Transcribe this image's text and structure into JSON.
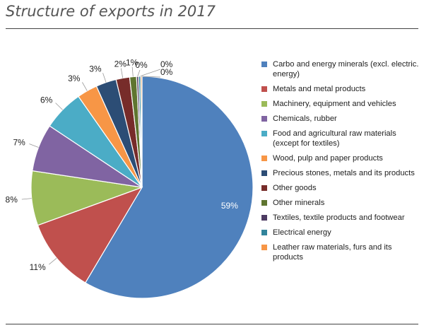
{
  "title": "Structure of exports in 2017",
  "chart_data": {
    "type": "pie",
    "title": "Structure of exports in 2017",
    "slices": [
      {
        "label": "Carbo and energy minerals (excl. electric. energy)",
        "value": 59,
        "display": "59%",
        "color": "#4f81bd"
      },
      {
        "label": "Metals and metal products",
        "value": 11,
        "display": "11%",
        "color": "#c0504d"
      },
      {
        "label": "Machinery, equipment and vehicles",
        "value": 8,
        "display": "8%",
        "color": "#9bbb59"
      },
      {
        "label": "Chemicals, rubber",
        "value": 7,
        "display": "7%",
        "color": "#8064a2"
      },
      {
        "label": "Food and agricultural raw materials (except for textiles)",
        "value": 6,
        "display": "6%",
        "color": "#4bacc6"
      },
      {
        "label": "Wood, pulp and paper products",
        "value": 3,
        "display": "3%",
        "color": "#f79646"
      },
      {
        "label": "Precious stones, metals and its products",
        "value": 3,
        "display": "3%",
        "color": "#2c4d75"
      },
      {
        "label": "Other goods",
        "value": 2,
        "display": "2%",
        "color": "#772c2a"
      },
      {
        "label": "Other minerals",
        "value": 1,
        "display": "1%",
        "color": "#5f7530"
      },
      {
        "label": "Textiles, textile products and footwear",
        "value": 0.3,
        "display": "0%",
        "color": "#4d3b62"
      },
      {
        "label": "Electrical energy",
        "value": 0.3,
        "display": "0%",
        "color": "#31849b"
      },
      {
        "label": "Leather raw materials, furs and its products",
        "value": 0.2,
        "display": "0%",
        "color": "#f79646"
      }
    ],
    "legend_position": "right"
  }
}
